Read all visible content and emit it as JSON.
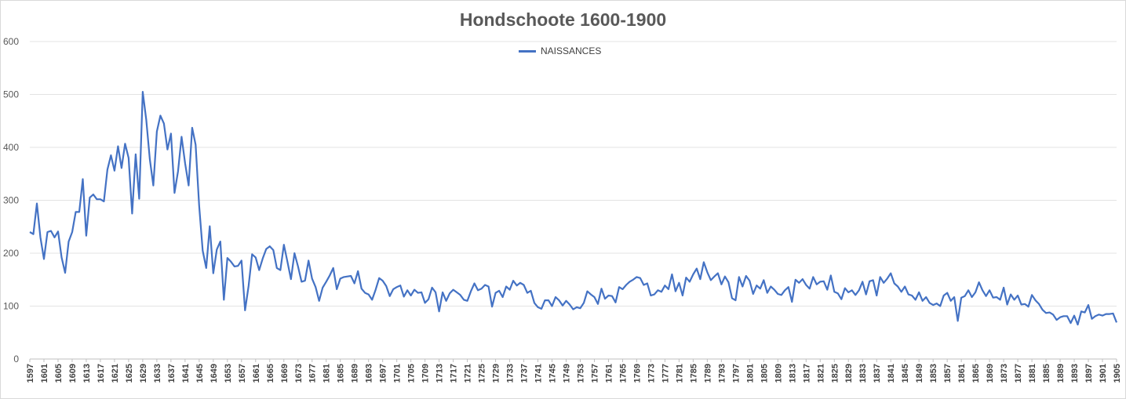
{
  "chart_data": {
    "type": "line",
    "title": "Hondschoote 1600-1900",
    "xlabel": "",
    "ylabel": "",
    "ylim": [
      0,
      600
    ],
    "yticks": [
      0,
      100,
      200,
      300,
      400,
      500,
      600
    ],
    "xlim": [
      1597,
      1905
    ],
    "xtick_labels": [
      "1597",
      "1601",
      "1605",
      "1609",
      "1613",
      "1617",
      "1621",
      "1625",
      "1629",
      "1633",
      "1637",
      "1641",
      "1645",
      "1649",
      "1653",
      "1657",
      "1661",
      "1665",
      "1669",
      "1673",
      "1677",
      "1681",
      "1685",
      "1689",
      "1693",
      "1697",
      "1701",
      "1705",
      "1709",
      "1713",
      "1717",
      "1721",
      "1725",
      "1729",
      "1733",
      "1737",
      "1741",
      "1745",
      "1749",
      "1753",
      "1757",
      "1761",
      "1765",
      "1769",
      "1773",
      "1777",
      "1781",
      "1785",
      "1789",
      "1793",
      "1797",
      "1801",
      "1805",
      "1809",
      "1813",
      "1817",
      "1821",
      "1825",
      "1829",
      "1833",
      "1837",
      "1841",
      "1845",
      "1849",
      "1853",
      "1857",
      "1861",
      "1865",
      "1869",
      "1873",
      "1877",
      "1881",
      "1885",
      "1889",
      "1893",
      "1897",
      "1901",
      "1905"
    ],
    "grid": true,
    "legend": "top-center",
    "series": [
      {
        "name": "NAISSANCES",
        "color": "#4472c4",
        "points": [
          [
            1597,
            240
          ],
          [
            1598,
            236
          ],
          [
            1599,
            294
          ],
          [
            1600,
            230
          ],
          [
            1601,
            189
          ],
          [
            1602,
            240
          ],
          [
            1603,
            242
          ],
          [
            1604,
            230
          ],
          [
            1605,
            241
          ],
          [
            1606,
            192
          ],
          [
            1607,
            163
          ],
          [
            1608,
            222
          ],
          [
            1609,
            240
          ],
          [
            1610,
            278
          ],
          [
            1611,
            278
          ],
          [
            1612,
            340
          ],
          [
            1613,
            233
          ],
          [
            1614,
            305
          ],
          [
            1615,
            311
          ],
          [
            1616,
            302
          ],
          [
            1617,
            302
          ],
          [
            1618,
            298
          ],
          [
            1619,
            358
          ],
          [
            1620,
            385
          ],
          [
            1621,
            356
          ],
          [
            1622,
            402
          ],
          [
            1623,
            361
          ],
          [
            1624,
            407
          ],
          [
            1625,
            380
          ],
          [
            1626,
            275
          ],
          [
            1627,
            387
          ],
          [
            1628,
            303
          ],
          [
            1629,
            505
          ],
          [
            1630,
            452
          ],
          [
            1631,
            378
          ],
          [
            1632,
            328
          ],
          [
            1633,
            430
          ],
          [
            1634,
            460
          ],
          [
            1635,
            445
          ],
          [
            1636,
            396
          ],
          [
            1637,
            426
          ],
          [
            1638,
            314
          ],
          [
            1639,
            355
          ],
          [
            1640,
            420
          ],
          [
            1641,
            370
          ],
          [
            1642,
            328
          ],
          [
            1643,
            437
          ],
          [
            1644,
            405
          ],
          [
            1645,
            290
          ],
          [
            1646,
            205
          ],
          [
            1647,
            172
          ],
          [
            1648,
            251
          ],
          [
            1649,
            162
          ],
          [
            1650,
            207
          ],
          [
            1651,
            222
          ],
          [
            1652,
            112
          ],
          [
            1653,
            191
          ],
          [
            1654,
            184
          ],
          [
            1655,
            175
          ],
          [
            1656,
            176
          ],
          [
            1657,
            186
          ],
          [
            1658,
            92
          ],
          [
            1659,
            138
          ],
          [
            1660,
            198
          ],
          [
            1661,
            192
          ],
          [
            1662,
            168
          ],
          [
            1663,
            190
          ],
          [
            1664,
            208
          ],
          [
            1665,
            213
          ],
          [
            1666,
            206
          ],
          [
            1667,
            172
          ],
          [
            1668,
            168
          ],
          [
            1669,
            216
          ],
          [
            1670,
            184
          ],
          [
            1671,
            151
          ],
          [
            1672,
            200
          ],
          [
            1673,
            175
          ],
          [
            1674,
            146
          ],
          [
            1675,
            148
          ],
          [
            1676,
            186
          ],
          [
            1677,
            152
          ],
          [
            1678,
            136
          ],
          [
            1679,
            110
          ],
          [
            1680,
            135
          ],
          [
            1681,
            146
          ],
          [
            1682,
            158
          ],
          [
            1683,
            172
          ],
          [
            1684,
            132
          ],
          [
            1685,
            152
          ],
          [
            1686,
            155
          ],
          [
            1687,
            156
          ],
          [
            1688,
            157
          ],
          [
            1689,
            143
          ],
          [
            1690,
            166
          ],
          [
            1691,
            133
          ],
          [
            1692,
            125
          ],
          [
            1693,
            122
          ],
          [
            1694,
            112
          ],
          [
            1695,
            131
          ],
          [
            1696,
            153
          ],
          [
            1697,
            148
          ],
          [
            1698,
            138
          ],
          [
            1699,
            119
          ],
          [
            1700,
            132
          ],
          [
            1701,
            136
          ],
          [
            1702,
            139
          ],
          [
            1703,
            118
          ],
          [
            1704,
            130
          ],
          [
            1705,
            120
          ],
          [
            1706,
            131
          ],
          [
            1707,
            125
          ],
          [
            1708,
            126
          ],
          [
            1709,
            106
          ],
          [
            1710,
            113
          ],
          [
            1711,
            135
          ],
          [
            1712,
            126
          ],
          [
            1713,
            90
          ],
          [
            1714,
            126
          ],
          [
            1715,
            110
          ],
          [
            1716,
            124
          ],
          [
            1717,
            131
          ],
          [
            1718,
            126
          ],
          [
            1719,
            121
          ],
          [
            1720,
            112
          ],
          [
            1721,
            110
          ],
          [
            1722,
            128
          ],
          [
            1723,
            143
          ],
          [
            1724,
            130
          ],
          [
            1725,
            133
          ],
          [
            1726,
            140
          ],
          [
            1727,
            137
          ],
          [
            1728,
            99
          ],
          [
            1729,
            125
          ],
          [
            1730,
            129
          ],
          [
            1731,
            117
          ],
          [
            1732,
            137
          ],
          [
            1733,
            131
          ],
          [
            1734,
            148
          ],
          [
            1735,
            139
          ],
          [
            1736,
            144
          ],
          [
            1737,
            140
          ],
          [
            1738,
            125
          ],
          [
            1739,
            129
          ],
          [
            1740,
            106
          ],
          [
            1741,
            98
          ],
          [
            1742,
            95
          ],
          [
            1743,
            111
          ],
          [
            1744,
            111
          ],
          [
            1745,
            100
          ],
          [
            1746,
            117
          ],
          [
            1747,
            111
          ],
          [
            1748,
            101
          ],
          [
            1749,
            110
          ],
          [
            1750,
            103
          ],
          [
            1751,
            94
          ],
          [
            1752,
            98
          ],
          [
            1753,
            96
          ],
          [
            1754,
            106
          ],
          [
            1755,
            128
          ],
          [
            1756,
            122
          ],
          [
            1757,
            117
          ],
          [
            1758,
            104
          ],
          [
            1759,
            133
          ],
          [
            1760,
            114
          ],
          [
            1761,
            120
          ],
          [
            1762,
            119
          ],
          [
            1763,
            107
          ],
          [
            1764,
            136
          ],
          [
            1765,
            132
          ],
          [
            1766,
            140
          ],
          [
            1767,
            146
          ],
          [
            1768,
            150
          ],
          [
            1769,
            155
          ],
          [
            1770,
            153
          ],
          [
            1771,
            140
          ],
          [
            1772,
            143
          ],
          [
            1773,
            120
          ],
          [
            1774,
            122
          ],
          [
            1775,
            130
          ],
          [
            1776,
            127
          ],
          [
            1777,
            139
          ],
          [
            1778,
            132
          ],
          [
            1779,
            160
          ],
          [
            1780,
            128
          ],
          [
            1781,
            144
          ],
          [
            1782,
            120
          ],
          [
            1783,
            154
          ],
          [
            1784,
            146
          ],
          [
            1785,
            160
          ],
          [
            1786,
            171
          ],
          [
            1787,
            151
          ],
          [
            1788,
            183
          ],
          [
            1789,
            164
          ],
          [
            1790,
            149
          ],
          [
            1791,
            156
          ],
          [
            1792,
            162
          ],
          [
            1793,
            141
          ],
          [
            1794,
            156
          ],
          [
            1795,
            145
          ],
          [
            1796,
            115
          ],
          [
            1797,
            111
          ],
          [
            1798,
            155
          ],
          [
            1799,
            137
          ],
          [
            1800,
            157
          ],
          [
            1801,
            148
          ],
          [
            1802,
            123
          ],
          [
            1803,
            139
          ],
          [
            1804,
            133
          ],
          [
            1805,
            149
          ],
          [
            1806,
            125
          ],
          [
            1807,
            137
          ],
          [
            1808,
            131
          ],
          [
            1809,
            123
          ],
          [
            1810,
            121
          ],
          [
            1811,
            130
          ],
          [
            1812,
            136
          ],
          [
            1813,
            108
          ],
          [
            1814,
            150
          ],
          [
            1815,
            144
          ],
          [
            1816,
            151
          ],
          [
            1817,
            140
          ],
          [
            1818,
            133
          ],
          [
            1819,
            155
          ],
          [
            1820,
            141
          ],
          [
            1821,
            146
          ],
          [
            1822,
            147
          ],
          [
            1823,
            131
          ],
          [
            1824,
            158
          ],
          [
            1825,
            127
          ],
          [
            1826,
            124
          ],
          [
            1827,
            113
          ],
          [
            1828,
            134
          ],
          [
            1829,
            126
          ],
          [
            1830,
            130
          ],
          [
            1831,
            121
          ],
          [
            1832,
            130
          ],
          [
            1833,
            146
          ],
          [
            1834,
            122
          ],
          [
            1835,
            147
          ],
          [
            1836,
            149
          ],
          [
            1837,
            120
          ],
          [
            1838,
            155
          ],
          [
            1839,
            144
          ],
          [
            1840,
            152
          ],
          [
            1841,
            162
          ],
          [
            1842,
            143
          ],
          [
            1843,
            137
          ],
          [
            1844,
            127
          ],
          [
            1845,
            137
          ],
          [
            1846,
            122
          ],
          [
            1847,
            120
          ],
          [
            1848,
            112
          ],
          [
            1849,
            126
          ],
          [
            1850,
            110
          ],
          [
            1851,
            117
          ],
          [
            1852,
            106
          ],
          [
            1853,
            102
          ],
          [
            1854,
            105
          ],
          [
            1855,
            100
          ],
          [
            1856,
            120
          ],
          [
            1857,
            125
          ],
          [
            1858,
            110
          ],
          [
            1859,
            117
          ],
          [
            1860,
            72
          ],
          [
            1861,
            116
          ],
          [
            1862,
            119
          ],
          [
            1863,
            130
          ],
          [
            1864,
            117
          ],
          [
            1865,
            126
          ],
          [
            1866,
            145
          ],
          [
            1867,
            130
          ],
          [
            1868,
            119
          ],
          [
            1869,
            130
          ],
          [
            1870,
            116
          ],
          [
            1871,
            117
          ],
          [
            1872,
            112
          ],
          [
            1873,
            135
          ],
          [
            1874,
            103
          ],
          [
            1875,
            122
          ],
          [
            1876,
            112
          ],
          [
            1877,
            120
          ],
          [
            1878,
            103
          ],
          [
            1879,
            104
          ],
          [
            1880,
            99
          ],
          [
            1881,
            121
          ],
          [
            1882,
            111
          ],
          [
            1883,
            104
          ],
          [
            1884,
            93
          ],
          [
            1885,
            87
          ],
          [
            1886,
            88
          ],
          [
            1887,
            84
          ],
          [
            1888,
            74
          ],
          [
            1889,
            79
          ],
          [
            1890,
            81
          ],
          [
            1891,
            81
          ],
          [
            1892,
            68
          ],
          [
            1893,
            82
          ],
          [
            1894,
            65
          ],
          [
            1895,
            90
          ],
          [
            1896,
            88
          ],
          [
            1897,
            102
          ],
          [
            1898,
            76
          ],
          [
            1899,
            81
          ],
          [
            1900,
            84
          ],
          [
            1901,
            82
          ],
          [
            1902,
            85
          ],
          [
            1903,
            85
          ],
          [
            1904,
            86
          ],
          [
            1905,
            69
          ]
        ]
      }
    ]
  }
}
